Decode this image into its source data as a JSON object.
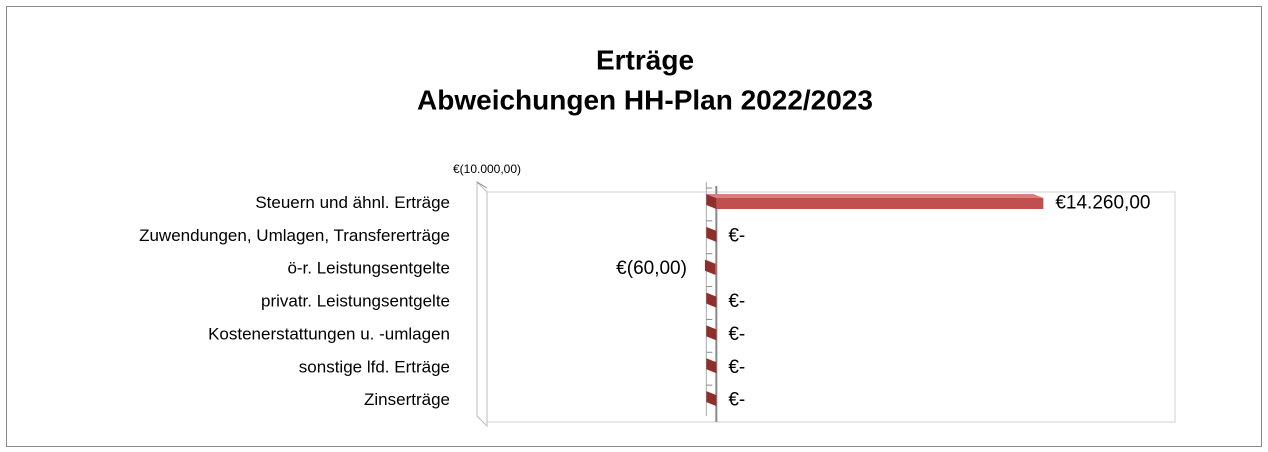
{
  "chart_data": {
    "type": "bar",
    "orientation": "horizontal",
    "title": "Erträge",
    "subtitle": "Abweichungen HH-Plan 2022/2023",
    "categories": [
      "Steuern und ähnl. Erträge",
      "Zuwendungen, Umlagen, Transfererträge",
      "ö-r. Leistungsentgelte",
      "privatr. Leistungsentgelte",
      "Kostenerstattungen u. -umlagen",
      "sonstige lfd. Erträge",
      "Zinserträge"
    ],
    "values": [
      14260,
      0,
      -60,
      0,
      0,
      0,
      0
    ],
    "value_labels": [
      "€14.260,00",
      "€-",
      "€(60,00)",
      "€-",
      "€-",
      "€-",
      "€-"
    ],
    "color": "#c0504d",
    "xlim": [
      -10000,
      20000
    ],
    "xticks": [
      {
        "value": -10000,
        "label": "€(10.000,00)"
      }
    ]
  }
}
